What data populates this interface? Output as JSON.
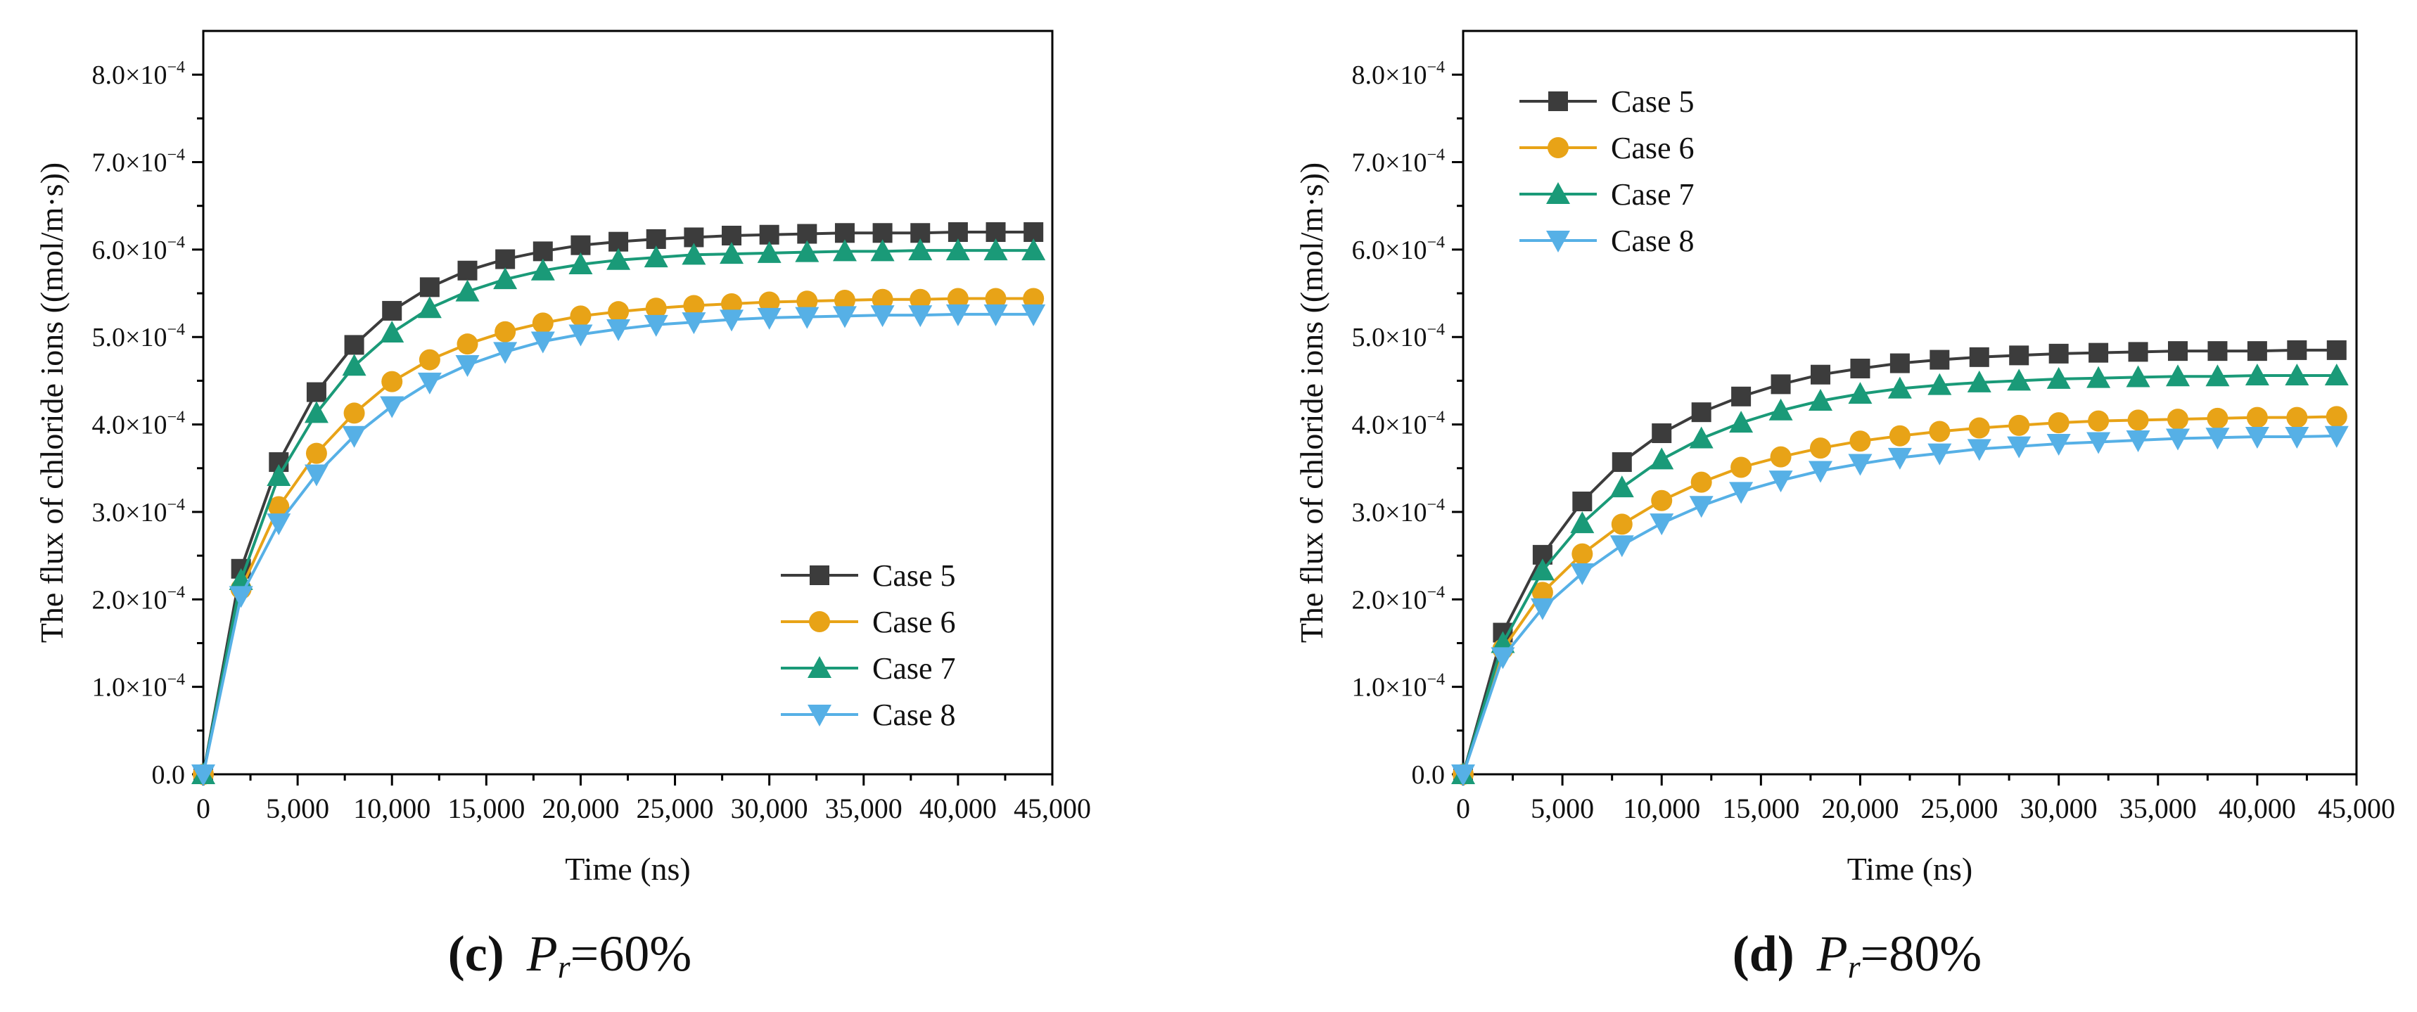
{
  "figure": {
    "panels": [
      {
        "letter": "(c)",
        "symbol": "P",
        "subscript": "r",
        "equals": "=",
        "value": "60%"
      },
      {
        "letter": "(d)",
        "symbol": "P",
        "subscript": "r",
        "equals": "=",
        "value": "80%"
      }
    ]
  },
  "chart_data": [
    {
      "type": "line",
      "title": "(c) Pr=60%",
      "xlabel": "Time (ns)",
      "ylabel": "The flux of chloride ions ((mol/m·s))",
      "xlim": [
        0,
        45000
      ],
      "ylim": [
        0,
        0.00085
      ],
      "x_ticks": [
        0,
        5000,
        10000,
        15000,
        20000,
        25000,
        30000,
        35000,
        40000,
        45000
      ],
      "x_tick_labels": [
        "0",
        "5,000",
        "10,000",
        "15,000",
        "20,000",
        "25,000",
        "30,000",
        "35,000",
        "40,000",
        "45,000"
      ],
      "y_ticks": [
        0,
        0.0001,
        0.0002,
        0.0003,
        0.0004,
        0.0005,
        0.0006,
        0.0007,
        0.0008
      ],
      "y_tick_labels": [
        "0.0",
        "1.0×10",
        "2.0×10",
        "3.0×10",
        "4.0×10",
        "5.0×10",
        "6.0×10",
        "7.0×10",
        "8.0×10"
      ],
      "y_tick_exponent": "−4",
      "legend_position": "bottom-right",
      "x": [
        0,
        2000,
        4000,
        6000,
        8000,
        10000,
        12000,
        14000,
        16000,
        18000,
        20000,
        22000,
        24000,
        26000,
        28000,
        30000,
        32000,
        34000,
        36000,
        38000,
        40000,
        42000,
        44000
      ],
      "series": [
        {
          "name": "Case 5",
          "marker": "square",
          "color": "#3c3c3c",
          "values": [
            0,
            0.000235,
            0.000357,
            0.000437,
            0.000491,
            0.00053,
            0.000557,
            0.000576,
            0.000589,
            0.000598,
            0.000605,
            0.000609,
            0.000612,
            0.000614,
            0.000616,
            0.000617,
            0.000618,
            0.000619,
            0.000619,
            0.000619,
            0.00062,
            0.00062,
            0.00062
          ]
        },
        {
          "name": "Case 6",
          "marker": "circle",
          "color": "#e8a317",
          "values": [
            0,
            0.000212,
            0.000306,
            0.000367,
            0.000413,
            0.000449,
            0.000474,
            0.000492,
            0.000506,
            0.000516,
            0.000524,
            0.000529,
            0.000533,
            0.000536,
            0.000538,
            0.00054,
            0.000541,
            0.000542,
            0.000543,
            0.000543,
            0.000544,
            0.000544,
            0.000544
          ]
        },
        {
          "name": "Case 7",
          "marker": "triangle-up",
          "color": "#1a9a78",
          "values": [
            0,
            0.000222,
            0.000341,
            0.000413,
            0.000467,
            0.000505,
            0.000533,
            0.000552,
            0.000566,
            0.000576,
            0.000583,
            0.000588,
            0.000591,
            0.000594,
            0.000595,
            0.000596,
            0.000597,
            0.000598,
            0.000598,
            0.000599,
            0.000599,
            0.000599,
            0.000599
          ]
        },
        {
          "name": "Case 8",
          "marker": "triangle-down",
          "color": "#56b0e6",
          "values": [
            0,
            0.000204,
            0.000287,
            0.000343,
            0.000387,
            0.000421,
            0.000448,
            0.000468,
            0.000483,
            0.000495,
            0.000503,
            0.000509,
            0.000514,
            0.000517,
            0.00052,
            0.000522,
            0.000523,
            0.000524,
            0.000525,
            0.000525,
            0.000526,
            0.000526,
            0.000526
          ]
        }
      ]
    },
    {
      "type": "line",
      "title": "(d) Pr=80%",
      "xlabel": "Time (ns)",
      "ylabel": "The flux of chloride ions ((mol/m·s))",
      "xlim": [
        0,
        45000
      ],
      "ylim": [
        0,
        0.00085
      ],
      "x_ticks": [
        0,
        5000,
        10000,
        15000,
        20000,
        25000,
        30000,
        35000,
        40000,
        45000
      ],
      "x_tick_labels": [
        "0",
        "5,000",
        "10,000",
        "15,000",
        "20,000",
        "25,000",
        "30,000",
        "35,000",
        "40,000",
        "45,000"
      ],
      "y_ticks": [
        0,
        0.0001,
        0.0002,
        0.0003,
        0.0004,
        0.0005,
        0.0006,
        0.0007,
        0.0008
      ],
      "y_tick_labels": [
        "0.0",
        "1.0×10",
        "2.0×10",
        "3.0×10",
        "4.0×10",
        "5.0×10",
        "6.0×10",
        "7.0×10",
        "8.0×10"
      ],
      "y_tick_exponent": "−4",
      "legend_position": "top-left",
      "x": [
        0,
        2000,
        4000,
        6000,
        8000,
        10000,
        12000,
        14000,
        16000,
        18000,
        20000,
        22000,
        24000,
        26000,
        28000,
        30000,
        32000,
        34000,
        36000,
        38000,
        40000,
        42000,
        44000
      ],
      "series": [
        {
          "name": "Case 5",
          "marker": "square",
          "color": "#3c3c3c",
          "values": [
            0,
            0.000162,
            0.000251,
            0.000312,
            0.000357,
            0.00039,
            0.000414,
            0.000432,
            0.000446,
            0.000457,
            0.000464,
            0.00047,
            0.000474,
            0.000477,
            0.000479,
            0.000481,
            0.000482,
            0.000483,
            0.000484,
            0.000484,
            0.000484,
            0.000485,
            0.000485
          ]
        },
        {
          "name": "Case 6",
          "marker": "circle",
          "color": "#e8a317",
          "values": [
            0,
            0.000143,
            0.000208,
            0.000252,
            0.000286,
            0.000313,
            0.000334,
            0.000351,
            0.000363,
            0.000373,
            0.000381,
            0.000387,
            0.000392,
            0.000396,
            0.000399,
            0.000402,
            0.000404,
            0.000405,
            0.000406,
            0.000407,
            0.000408,
            0.000408,
            0.000409
          ]
        },
        {
          "name": "Case 7",
          "marker": "triangle-up",
          "color": "#1a9a78",
          "values": [
            0,
            0.00015,
            0.000233,
            0.000287,
            0.000328,
            0.00036,
            0.000384,
            0.000402,
            0.000416,
            0.000427,
            0.000435,
            0.000441,
            0.000445,
            0.000448,
            0.00045,
            0.000452,
            0.000453,
            0.000454,
            0.000455,
            0.000455,
            0.000456,
            0.000456,
            0.000456
          ]
        },
        {
          "name": "Case 8",
          "marker": "triangle-down",
          "color": "#56b0e6",
          "values": [
            0,
            0.000134,
            0.00019,
            0.00023,
            0.000262,
            0.000287,
            0.000307,
            0.000323,
            0.000336,
            0.000347,
            0.000355,
            0.000362,
            0.000367,
            0.000372,
            0.000375,
            0.000378,
            0.00038,
            0.000382,
            0.000384,
            0.000385,
            0.000386,
            0.000386,
            0.000387
          ]
        }
      ]
    }
  ]
}
